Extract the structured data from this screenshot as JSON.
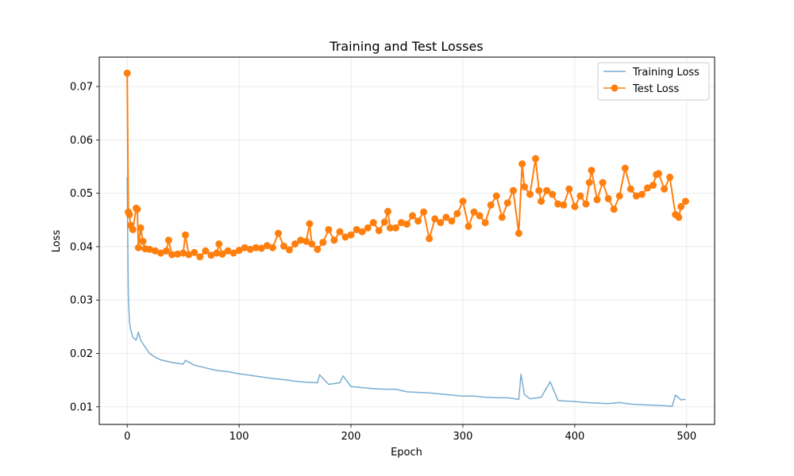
{
  "chart_data": {
    "type": "line",
    "title": "Training and Test Losses",
    "xlabel": "Epoch",
    "ylabel": "Loss",
    "xlim": [
      -25,
      525
    ],
    "ylim": [
      0.0067,
      0.0755
    ],
    "xticks": [
      0,
      100,
      200,
      300,
      400,
      500
    ],
    "yticks": [
      0.01,
      0.02,
      0.03,
      0.04,
      0.05,
      0.06,
      0.07
    ],
    "ytick_labels": [
      "0.01",
      "0.02",
      "0.03",
      "0.04",
      "0.05",
      "0.06",
      "0.07"
    ],
    "grid": true,
    "legend_position": "top-right",
    "series": [
      {
        "name": "Training Loss",
        "color": "#1f77b4",
        "alpha": 0.6,
        "marker": "none",
        "x": [
          0,
          1,
          2,
          3,
          5,
          8,
          10,
          12,
          15,
          20,
          25,
          30,
          40,
          50,
          52,
          60,
          70,
          80,
          90,
          100,
          110,
          120,
          130,
          140,
          150,
          160,
          170,
          172,
          180,
          190,
          193,
          200,
          210,
          220,
          230,
          240,
          250,
          260,
          270,
          280,
          290,
          300,
          310,
          320,
          330,
          340,
          350,
          352,
          355,
          360,
          370,
          378,
          385,
          390,
          400,
          410,
          420,
          430,
          440,
          450,
          460,
          470,
          480,
          487,
          490,
          495,
          499
        ],
        "y": [
          0.053,
          0.031,
          0.026,
          0.0245,
          0.023,
          0.0225,
          0.024,
          0.0225,
          0.0215,
          0.02,
          0.0193,
          0.0188,
          0.0183,
          0.018,
          0.0187,
          0.0178,
          0.0173,
          0.0168,
          0.0166,
          0.0162,
          0.0159,
          0.0156,
          0.0153,
          0.0151,
          0.0148,
          0.0146,
          0.0145,
          0.016,
          0.0142,
          0.0145,
          0.0158,
          0.0138,
          0.0136,
          0.0134,
          0.0133,
          0.0133,
          0.0128,
          0.0127,
          0.0126,
          0.0124,
          0.0122,
          0.012,
          0.012,
          0.0118,
          0.0117,
          0.0117,
          0.0114,
          0.0161,
          0.0123,
          0.0115,
          0.0118,
          0.0147,
          0.0112,
          0.0111,
          0.011,
          0.0108,
          0.0107,
          0.0106,
          0.0108,
          0.0105,
          0.0104,
          0.0103,
          0.0102,
          0.0101,
          0.0122,
          0.0113,
          0.0114
        ]
      },
      {
        "name": "Test Loss",
        "color": "#ff7f0e",
        "alpha": 1,
        "marker": "circle",
        "x": [
          0,
          1,
          2,
          3,
          5,
          8,
          9,
          10,
          12,
          14,
          16,
          20,
          25,
          30,
          35,
          37,
          40,
          45,
          50,
          52,
          55,
          60,
          65,
          70,
          75,
          80,
          82,
          85,
          90,
          95,
          100,
          105,
          110,
          115,
          120,
          125,
          130,
          135,
          140,
          145,
          150,
          155,
          160,
          163,
          165,
          170,
          175,
          180,
          185,
          190,
          195,
          200,
          205,
          210,
          215,
          220,
          225,
          230,
          233,
          235,
          240,
          245,
          250,
          255,
          260,
          265,
          270,
          275,
          280,
          285,
          290,
          295,
          300,
          305,
          310,
          315,
          320,
          325,
          330,
          335,
          340,
          345,
          350,
          353,
          355,
          360,
          365,
          368,
          370,
          375,
          380,
          385,
          390,
          395,
          400,
          405,
          410,
          413,
          415,
          420,
          425,
          430,
          435,
          440,
          445,
          450,
          455,
          460,
          465,
          470,
          473,
          475,
          480,
          485,
          490,
          493,
          495,
          499
        ],
        "y": [
          0.0725,
          0.0465,
          0.046,
          0.044,
          0.0432,
          0.0472,
          0.047,
          0.0398,
          0.0435,
          0.041,
          0.0396,
          0.0395,
          0.0392,
          0.0388,
          0.0392,
          0.0412,
          0.0385,
          0.0386,
          0.0388,
          0.0422,
          0.0385,
          0.0389,
          0.0381,
          0.0392,
          0.0384,
          0.0388,
          0.0405,
          0.0386,
          0.0392,
          0.0388,
          0.0393,
          0.0398,
          0.0395,
          0.0398,
          0.0397,
          0.0402,
          0.0398,
          0.0425,
          0.0401,
          0.0394,
          0.0405,
          0.0412,
          0.041,
          0.0443,
          0.0405,
          0.0395,
          0.0408,
          0.0432,
          0.0412,
          0.0428,
          0.0418,
          0.0422,
          0.0432,
          0.0428,
          0.0435,
          0.0445,
          0.043,
          0.0446,
          0.0466,
          0.0435,
          0.0435,
          0.0445,
          0.0442,
          0.0458,
          0.0448,
          0.0465,
          0.0415,
          0.0452,
          0.0445,
          0.0455,
          0.0448,
          0.0462,
          0.0485,
          0.0438,
          0.0465,
          0.0458,
          0.0445,
          0.0478,
          0.0495,
          0.0455,
          0.0482,
          0.0505,
          0.0425,
          0.0555,
          0.0512,
          0.0498,
          0.0565,
          0.0505,
          0.0485,
          0.0505,
          0.0498,
          0.048,
          0.0478,
          0.0508,
          0.0475,
          0.0495,
          0.048,
          0.052,
          0.0543,
          0.0488,
          0.052,
          0.049,
          0.047,
          0.0495,
          0.0547,
          0.0508,
          0.0495,
          0.0498,
          0.051,
          0.0515,
          0.0535,
          0.0537,
          0.0508,
          0.053,
          0.046,
          0.0455,
          0.0475,
          0.0485
        ]
      }
    ]
  }
}
